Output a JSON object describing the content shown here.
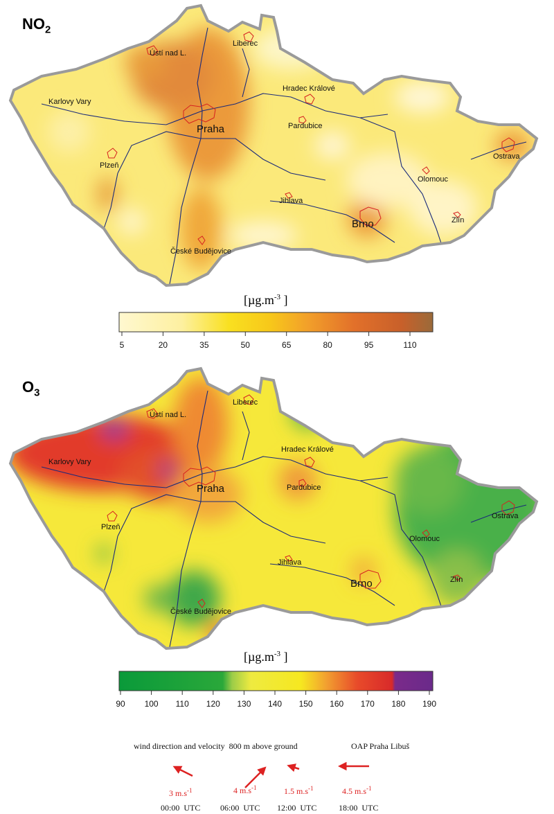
{
  "no2": {
    "title_main": "NO",
    "title_sub": "2",
    "unit_main": "[µg.m",
    "unit_sup": "-3",
    "unit_close": " ]",
    "scale_ticks": [
      "5",
      "20",
      "35",
      "50",
      "65",
      "80",
      "95",
      "110"
    ],
    "scale_colors": [
      "#fff8d0",
      "#fdf2a0",
      "#f9e020",
      "#f7c81a",
      "#f2a02a",
      "#e2702a",
      "#c8602a",
      "#9a6a3a"
    ]
  },
  "o3": {
    "title_main": "O",
    "title_sub": "3",
    "unit_main": "[µg.m",
    "unit_sup": "-3",
    "unit_close": " ]",
    "scale_ticks": [
      "90",
      "100",
      "110",
      "120",
      "130",
      "140",
      "150",
      "160",
      "170",
      "180",
      "190"
    ],
    "scale_colors": [
      "#0a9a3a",
      "#2aa83a",
      "#7ac04a",
      "#d6e048",
      "#f6ea20",
      "#f6d820",
      "#f2a030",
      "#e85a2a",
      "#d82a2a",
      "#7a2a8a"
    ]
  },
  "cities": {
    "praha": "Praha",
    "usti": "Ústí nad L.",
    "liberec": "Liberec",
    "karlovy_vary": "Karlovy Vary",
    "hradec": "Hradec Králové",
    "pardubice": "Pardubice",
    "ostrava": "Ostrava",
    "plzen": "Plzeň",
    "olomouc": "Olomouc",
    "jihlava": "Jihlava",
    "brno": "Brno",
    "zlin": "Zlín",
    "ceske_budejovice": "České Budějovice"
  },
  "wind": {
    "caption_left": "wind direction and velocity  800 m above ground",
    "caption_right": "OAP Praha Libuš",
    "entries": [
      {
        "speed": "3 m.s",
        "sup": "-1",
        "time": "00:00  UTC"
      },
      {
        "speed": "4 m.s",
        "sup": "-1",
        "time": "06:00  UTC"
      },
      {
        "speed": "1.5 m.s",
        "sup": "-1",
        "time": "12:00  UTC"
      },
      {
        "speed": "4.5 m.s",
        "sup": "-1",
        "time": "18:00  UTC"
      }
    ],
    "arrow_color": "#dd2222"
  }
}
